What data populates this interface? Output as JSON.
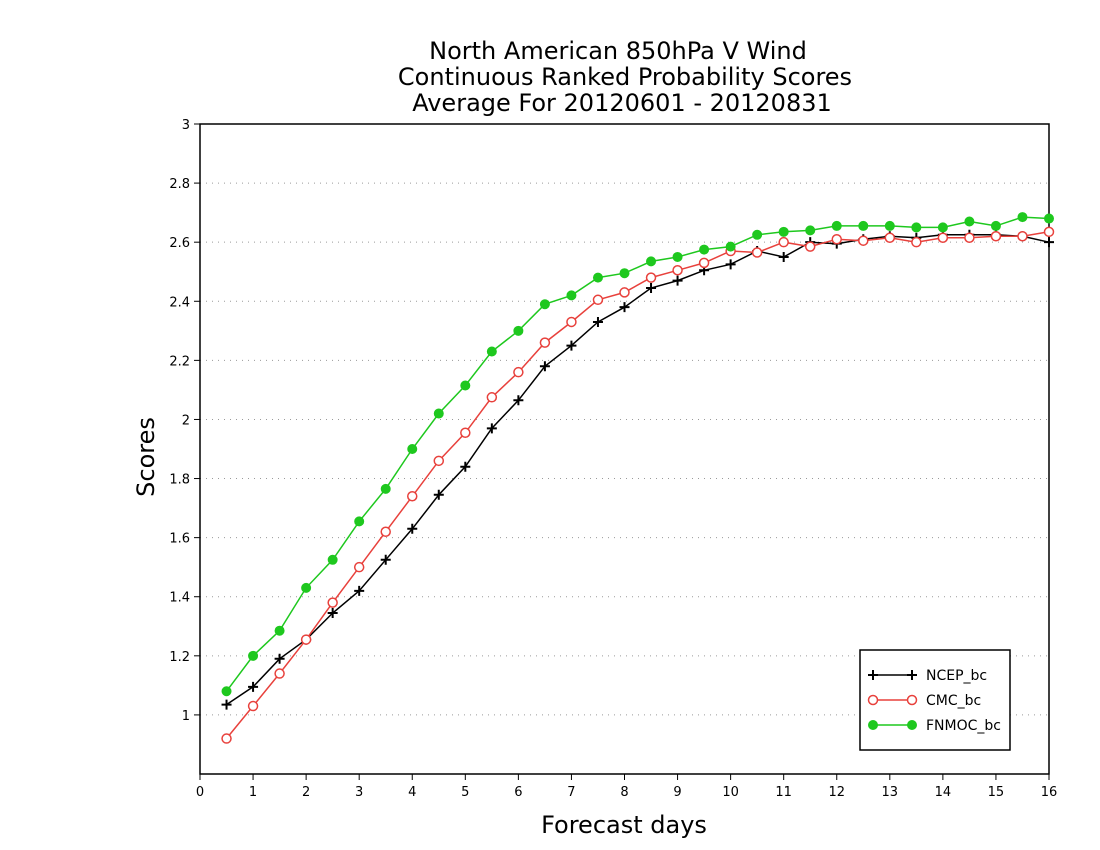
{
  "chart_data": {
    "type": "line",
    "title": [
      "North American 850hPa V Wind",
      "Continuous Ranked Probability Scores",
      "Average For 20120601 - 20120831"
    ],
    "xlabel": "Forecast days",
    "ylabel": "Scores",
    "xlim": [
      0,
      16
    ],
    "ylim": [
      0.8,
      3.0
    ],
    "x_ticks": [
      "0",
      "1",
      "2",
      "3",
      "4",
      "5",
      "6",
      "7",
      "8",
      "9",
      "10",
      "11",
      "12",
      "13",
      "14",
      "15",
      "16"
    ],
    "y_ticks": [
      "1",
      "1.2",
      "1.4",
      "1.6",
      "1.8",
      "2",
      "2.2",
      "2.4",
      "2.6",
      "2.8",
      "3"
    ],
    "y_tick_values": [
      1,
      1.2,
      1.4,
      1.6,
      1.8,
      2.0,
      2.2,
      2.4,
      2.6,
      2.8,
      3.0
    ],
    "grid": "horizontal-dotted",
    "legend_position": "bottom-right",
    "x": [
      0.5,
      1,
      1.5,
      2,
      2.5,
      3,
      3.5,
      4,
      4.5,
      5,
      5.5,
      6,
      6.5,
      7,
      7.5,
      8,
      8.5,
      9,
      9.5,
      10,
      10.5,
      11,
      11.5,
      12,
      12.5,
      13,
      13.5,
      14,
      14.5,
      15,
      15.5,
      16
    ],
    "series": [
      {
        "name": "NCEP_bc",
        "color": "#000000",
        "marker": "plus",
        "values": [
          1.035,
          1.095,
          1.19,
          1.255,
          1.345,
          1.42,
          1.525,
          1.63,
          1.745,
          1.84,
          1.97,
          2.065,
          2.18,
          2.25,
          2.33,
          2.38,
          2.445,
          2.47,
          2.505,
          2.525,
          2.57,
          2.55,
          2.6,
          2.595,
          2.61,
          2.62,
          2.615,
          2.625,
          2.625,
          2.625,
          2.62,
          2.6
        ]
      },
      {
        "name": "CMC_bc",
        "color": "#e8413c",
        "marker": "open-circle",
        "values": [
          0.92,
          1.03,
          1.14,
          1.255,
          1.38,
          1.5,
          1.62,
          1.74,
          1.86,
          1.955,
          2.075,
          2.16,
          2.26,
          2.33,
          2.405,
          2.43,
          2.48,
          2.505,
          2.53,
          2.57,
          2.565,
          2.6,
          2.585,
          2.61,
          2.605,
          2.615,
          2.6,
          2.615,
          2.615,
          2.62,
          2.62,
          2.635
        ]
      },
      {
        "name": "FNMOC_bc",
        "color": "#1ec81e",
        "marker": "filled-circle",
        "values": [
          1.08,
          1.2,
          1.285,
          1.43,
          1.525,
          1.655,
          1.765,
          1.9,
          2.02,
          2.115,
          2.23,
          2.3,
          2.39,
          2.42,
          2.48,
          2.495,
          2.535,
          2.55,
          2.575,
          2.585,
          2.625,
          2.635,
          2.64,
          2.655,
          2.655,
          2.655,
          2.65,
          2.65,
          2.67,
          2.655,
          2.685,
          2.68
        ]
      }
    ]
  }
}
